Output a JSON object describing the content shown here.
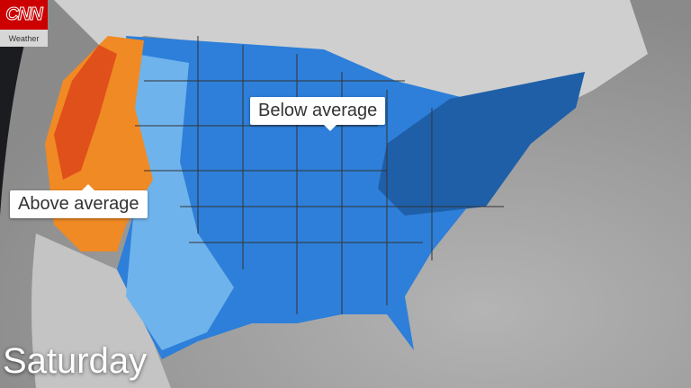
{
  "branding": {
    "logo_text": "CNN",
    "logo_subtitle": "Weather"
  },
  "callouts": {
    "below": "Below average",
    "above": "Above average"
  },
  "day_label": "Saturday",
  "colors": {
    "below_dark": "#1f5fa8",
    "below_mid": "#2d7fd9",
    "below_light": "#6fb3ec",
    "above_orange": "#f08a24",
    "above_red": "#e0501a",
    "land": "#c9c9c9",
    "ocean": "#9a9a9a",
    "space": "#1a1c20"
  }
}
